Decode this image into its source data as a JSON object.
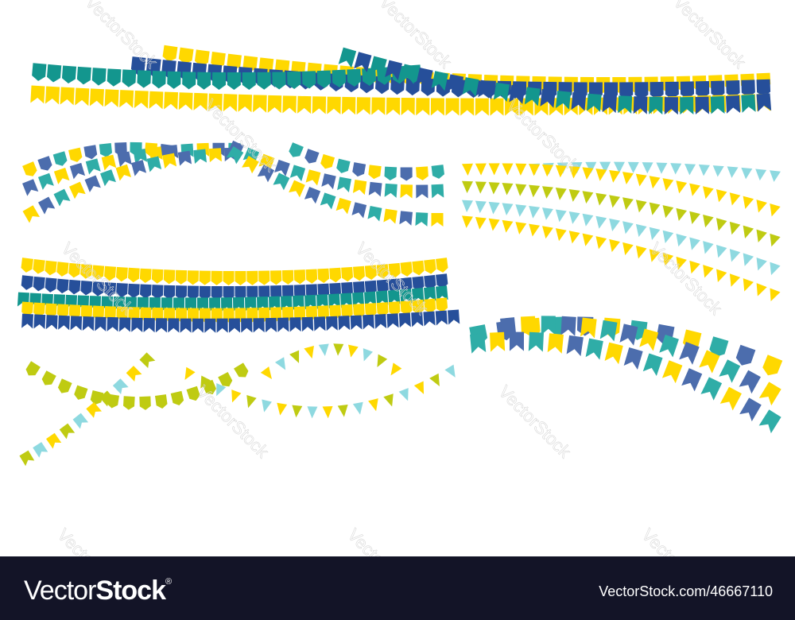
{
  "image": {
    "subject": "festive bunting garlands collection",
    "palette": {
      "yellow": "#FFD800",
      "dark_blue": "#264F9A",
      "teal": "#13968E",
      "slate_blue": "#4C6DAD",
      "light_teal": "#2FADA7",
      "lime": "#BFCB12",
      "light_blue": "#8ED9E0"
    },
    "garland_groups": [
      {
        "name": "top-wide-garlands",
        "rows": 5,
        "colors": [
          "yellow",
          "dark_blue",
          "teal"
        ]
      },
      {
        "name": "left-swag-garlands",
        "rows": 3,
        "colors": [
          "yellow",
          "slate_blue",
          "light_teal"
        ]
      },
      {
        "name": "right-triangle-garlands",
        "rows": 5,
        "colors": [
          "yellow",
          "lime",
          "light_blue"
        ]
      },
      {
        "name": "left-dense-garlands",
        "rows": 5,
        "colors": [
          "yellow",
          "dark_blue",
          "teal"
        ]
      },
      {
        "name": "bottom-left-crossing-garlands",
        "rows": 4,
        "colors": [
          "lime",
          "yellow",
          "light_blue"
        ]
      },
      {
        "name": "bottom-right-garlands",
        "rows": 3,
        "colors": [
          "yellow",
          "slate_blue",
          "light_teal"
        ]
      }
    ]
  },
  "watermark": {
    "text": "VectorStock",
    "mark": "®"
  },
  "footer": {
    "logo_light": "Vector",
    "logo_bold": "Stock",
    "logo_mark": "®",
    "reference": "VectorStock.com/46667110"
  }
}
